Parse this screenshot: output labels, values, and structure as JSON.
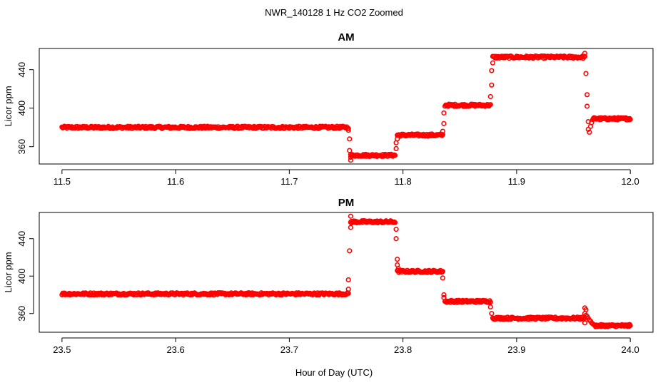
{
  "figure": {
    "title": "NWR_140128  1 Hz CO2 Zoomed",
    "xlabel": "Hour of Day (UTC)"
  },
  "chart_data": [
    {
      "type": "scatter",
      "title": "AM",
      "xlabel": "",
      "ylabel": "Licor ppm",
      "xlim": [
        11.48,
        12.02
      ],
      "ylim": [
        342,
        462
      ],
      "xticks": [
        11.5,
        11.6,
        11.7,
        11.8,
        11.9,
        12.0
      ],
      "xtick_labels": [
        "11.5",
        "11.6",
        "11.7",
        "11.8",
        "11.9",
        "12.0"
      ],
      "yticks": [
        360,
        400,
        440
      ],
      "ytick_labels": [
        "360",
        "400",
        "440"
      ],
      "grid": false,
      "marker": "open-circle",
      "color": "#ff0000",
      "segments": [
        {
          "x_start": 11.5,
          "x_end": 11.752,
          "y": 380
        },
        {
          "x_start": 11.754,
          "x_end": 11.793,
          "y": 351
        },
        {
          "x_start": 11.795,
          "x_end": 11.835,
          "y": 372
        },
        {
          "x_start": 11.837,
          "x_end": 11.877,
          "y": 403
        },
        {
          "x_start": 11.879,
          "x_end": 11.96,
          "y": 453
        },
        {
          "x_start": 11.967,
          "x_end": 12.0,
          "y": 389
        }
      ],
      "transitions": [
        {
          "x": 11.752,
          "y": 377
        },
        {
          "x": 11.753,
          "y": 368
        },
        {
          "x": 11.753,
          "y": 356
        },
        {
          "x": 11.754,
          "y": 349
        },
        {
          "x": 11.754,
          "y": 346
        },
        {
          "x": 11.794,
          "y": 358
        },
        {
          "x": 11.794,
          "y": 364
        },
        {
          "x": 11.795,
          "y": 368
        },
        {
          "x": 11.835,
          "y": 376
        },
        {
          "x": 11.836,
          "y": 384
        },
        {
          "x": 11.836,
          "y": 395
        },
        {
          "x": 11.877,
          "y": 412
        },
        {
          "x": 11.878,
          "y": 424
        },
        {
          "x": 11.878,
          "y": 439
        },
        {
          "x": 11.879,
          "y": 447
        },
        {
          "x": 11.96,
          "y": 457
        },
        {
          "x": 11.961,
          "y": 436
        },
        {
          "x": 11.962,
          "y": 414
        },
        {
          "x": 11.962,
          "y": 402
        },
        {
          "x": 11.963,
          "y": 386
        },
        {
          "x": 11.963,
          "y": 378
        },
        {
          "x": 11.964,
          "y": 375
        },
        {
          "x": 11.965,
          "y": 381
        },
        {
          "x": 11.966,
          "y": 385
        }
      ]
    },
    {
      "type": "scatter",
      "title": "PM",
      "xlabel": "",
      "ylabel": "Licor ppm",
      "xlim": [
        23.48,
        24.02
      ],
      "ylim": [
        340,
        468
      ],
      "xticks": [
        23.5,
        23.6,
        23.7,
        23.8,
        23.9,
        24.0
      ],
      "xtick_labels": [
        "23.5",
        "23.6",
        "23.7",
        "23.8",
        "23.9",
        "24.0"
      ],
      "yticks": [
        360,
        400,
        440
      ],
      "ytick_labels": [
        "360",
        "400",
        "440"
      ],
      "grid": false,
      "marker": "open-circle",
      "color": "#ff0000",
      "segments": [
        {
          "x_start": 23.5,
          "x_end": 23.752,
          "y": 381
        },
        {
          "x_start": 23.754,
          "x_end": 23.793,
          "y": 458
        },
        {
          "x_start": 23.795,
          "x_end": 23.835,
          "y": 405
        },
        {
          "x_start": 23.837,
          "x_end": 23.877,
          "y": 373
        },
        {
          "x_start": 23.879,
          "x_end": 23.96,
          "y": 355
        },
        {
          "x_start": 23.969,
          "x_end": 24.0,
          "y": 347
        }
      ],
      "transitions": [
        {
          "x": 23.752,
          "y": 386
        },
        {
          "x": 23.752,
          "y": 396
        },
        {
          "x": 23.753,
          "y": 427
        },
        {
          "x": 23.754,
          "y": 452
        },
        {
          "x": 23.754,
          "y": 464
        },
        {
          "x": 23.794,
          "y": 450
        },
        {
          "x": 23.794,
          "y": 440
        },
        {
          "x": 23.795,
          "y": 418
        },
        {
          "x": 23.795,
          "y": 412
        },
        {
          "x": 23.796,
          "y": 408
        },
        {
          "x": 23.835,
          "y": 398
        },
        {
          "x": 23.836,
          "y": 380
        },
        {
          "x": 23.836,
          "y": 377
        },
        {
          "x": 23.877,
          "y": 367
        },
        {
          "x": 23.878,
          "y": 360
        },
        {
          "x": 23.96,
          "y": 366
        },
        {
          "x": 23.961,
          "y": 364
        },
        {
          "x": 23.96,
          "y": 360
        },
        {
          "x": 23.961,
          "y": 358
        },
        {
          "x": 23.962,
          "y": 357
        },
        {
          "x": 23.96,
          "y": 350
        },
        {
          "x": 23.963,
          "y": 355
        },
        {
          "x": 23.964,
          "y": 353
        },
        {
          "x": 23.965,
          "y": 352
        },
        {
          "x": 23.966,
          "y": 350
        },
        {
          "x": 23.967,
          "y": 349
        },
        {
          "x": 23.968,
          "y": 348
        }
      ]
    }
  ]
}
